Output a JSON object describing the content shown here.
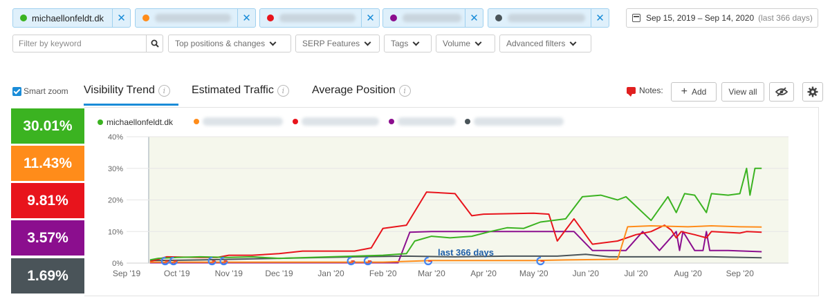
{
  "competitors": [
    {
      "domain": "michaellonfeldt.dk",
      "color": "#3bb321"
    },
    {
      "domain": "",
      "color": "#ff8c1a"
    },
    {
      "domain": "",
      "color": "#e8141c"
    },
    {
      "domain": "",
      "color": "#8b0e8e"
    },
    {
      "domain": "",
      "color": "#4a5459"
    }
  ],
  "date_range": {
    "label": "Sep 15, 2019 – Sep 14, 2020",
    "suffix": "(last 366 days)"
  },
  "filters": {
    "keyword_placeholder": "Filter by keyword",
    "dropdowns": [
      "Top positions & changes",
      "SERP Features",
      "Tags",
      "Volume",
      "Advanced filters"
    ]
  },
  "smart_zoom": {
    "label": "Smart zoom",
    "checked": true
  },
  "tabs": [
    {
      "label": "Visibility Trend",
      "active": true
    },
    {
      "label": "Estimated Traffic",
      "active": false
    },
    {
      "label": "Average Position",
      "active": false
    }
  ],
  "notes": {
    "label": "Notes:",
    "add_label": "Add",
    "view_all_label": "View all"
  },
  "scores": [
    {
      "value": "30.01%",
      "color": "#3bb321"
    },
    {
      "value": "11.43%",
      "color": "#ff8c1a"
    },
    {
      "value": "9.81%",
      "color": "#e8141c"
    },
    {
      "value": "3.57%",
      "color": "#8b0e8e"
    },
    {
      "value": "1.69%",
      "color": "#4a5459"
    }
  ],
  "chart_data": {
    "type": "line",
    "ylim": [
      0,
      40
    ],
    "y_ticks": [
      "0%",
      "10%",
      "20%",
      "30%",
      "40%"
    ],
    "x_ticks": [
      "Sep '19",
      "Oct '19",
      "Nov '19",
      "Dec '19",
      "Jan '20",
      "Feb '20",
      "Mar '20",
      "Apr '20",
      "May '20",
      "Jun '20",
      "Jul '20",
      "Aug '20",
      "Sep '20"
    ],
    "x_start": "2019-09-01",
    "x_end": "2020-09-30",
    "annotation": "last 366 days",
    "google_update_markers": [
      "2019-09-24",
      "2019-09-29",
      "2019-10-22",
      "2019-10-29",
      "2020-01-13",
      "2020-01-23",
      "2020-02-28",
      "2020-05-05"
    ],
    "series": [
      {
        "name": "michaellonfeldt.dk",
        "color": "#3bb321",
        "points": [
          [
            "2019-09-15",
            1
          ],
          [
            "2019-09-20",
            1.5
          ],
          [
            "2019-10-01",
            1.8
          ],
          [
            "2019-10-15",
            2
          ],
          [
            "2019-11-01",
            1.8
          ],
          [
            "2019-11-15",
            2
          ],
          [
            "2019-12-01",
            1.5
          ],
          [
            "2019-12-20",
            1.8
          ],
          [
            "2020-01-01",
            2
          ],
          [
            "2020-01-15",
            2.2
          ],
          [
            "2020-02-01",
            2.5
          ],
          [
            "2020-02-15",
            3
          ],
          [
            "2020-02-20",
            7
          ],
          [
            "2020-03-01",
            8.5
          ],
          [
            "2020-03-12",
            8
          ],
          [
            "2020-03-25",
            8.5
          ],
          [
            "2020-04-05",
            10
          ],
          [
            "2020-04-15",
            11.2
          ],
          [
            "2020-04-25",
            11
          ],
          [
            "2020-05-05",
            13
          ],
          [
            "2020-05-20",
            14
          ],
          [
            "2020-05-30",
            21
          ],
          [
            "2020-06-10",
            21.5
          ],
          [
            "2020-06-20",
            20
          ],
          [
            "2020-06-25",
            21
          ],
          [
            "2020-07-10",
            13.5
          ],
          [
            "2020-07-20",
            21
          ],
          [
            "2020-07-25",
            16
          ],
          [
            "2020-07-30",
            22
          ],
          [
            "2020-08-05",
            21.5
          ],
          [
            "2020-08-12",
            16
          ],
          [
            "2020-08-15",
            22
          ],
          [
            "2020-08-25",
            21.5
          ],
          [
            "2020-09-01",
            22
          ],
          [
            "2020-09-05",
            30
          ],
          [
            "2020-09-07",
            21.5
          ],
          [
            "2020-09-10",
            30
          ],
          [
            "2020-09-14",
            30
          ]
        ]
      },
      {
        "name": "",
        "color": "#ff8c1a",
        "points": [
          [
            "2019-09-15",
            0.3
          ],
          [
            "2020-02-01",
            0.3
          ],
          [
            "2020-03-01",
            0.8
          ],
          [
            "2020-04-01",
            0.8
          ],
          [
            "2020-05-01",
            0.8
          ],
          [
            "2020-05-20",
            1
          ],
          [
            "2020-06-20",
            1.2
          ],
          [
            "2020-06-26",
            11.5
          ],
          [
            "2020-07-10",
            11.8
          ],
          [
            "2020-08-01",
            11.5
          ],
          [
            "2020-08-15",
            11.8
          ],
          [
            "2020-09-01",
            11.5
          ],
          [
            "2020-09-14",
            11.4
          ]
        ]
      },
      {
        "name": "",
        "color": "#e8141c",
        "points": [
          [
            "2019-09-15",
            0.5
          ],
          [
            "2019-09-25",
            2
          ],
          [
            "2019-10-15",
            1.8
          ],
          [
            "2019-10-25",
            1.8
          ],
          [
            "2019-11-01",
            2.5
          ],
          [
            "2019-11-15",
            2.5
          ],
          [
            "2019-12-01",
            3
          ],
          [
            "2019-12-15",
            3.8
          ],
          [
            "2020-01-15",
            3.8
          ],
          [
            "2020-01-25",
            4.8
          ],
          [
            "2020-02-01",
            11
          ],
          [
            "2020-02-15",
            12
          ],
          [
            "2020-02-27",
            22.5
          ],
          [
            "2020-03-15",
            22
          ],
          [
            "2020-03-25",
            15
          ],
          [
            "2020-04-01",
            15.5
          ],
          [
            "2020-05-01",
            15.8
          ],
          [
            "2020-05-10",
            15.5
          ],
          [
            "2020-05-15",
            7
          ],
          [
            "2020-05-25",
            14
          ],
          [
            "2020-06-05",
            6
          ],
          [
            "2020-06-20",
            7
          ],
          [
            "2020-07-01",
            9
          ],
          [
            "2020-07-10",
            10
          ],
          [
            "2020-07-18",
            12
          ],
          [
            "2020-07-22",
            10.5
          ],
          [
            "2020-07-25",
            8
          ],
          [
            "2020-07-28",
            10
          ],
          [
            "2020-08-05",
            9
          ],
          [
            "2020-08-12",
            8
          ],
          [
            "2020-08-15",
            10
          ],
          [
            "2020-09-01",
            9.5
          ],
          [
            "2020-09-05",
            10
          ],
          [
            "2020-09-14",
            9.8
          ]
        ]
      },
      {
        "name": "",
        "color": "#8b0e8e",
        "points": [
          [
            "2019-09-15",
            0.1
          ],
          [
            "2020-02-10",
            0.1
          ],
          [
            "2020-02-17",
            9.8
          ],
          [
            "2020-03-01",
            10
          ],
          [
            "2020-05-25",
            10
          ],
          [
            "2020-06-05",
            4
          ],
          [
            "2020-06-25",
            4
          ],
          [
            "2020-07-05",
            10
          ],
          [
            "2020-07-15",
            4
          ],
          [
            "2020-07-25",
            10
          ],
          [
            "2020-07-27",
            4
          ],
          [
            "2020-07-29",
            10
          ],
          [
            "2020-08-05",
            4
          ],
          [
            "2020-08-10",
            4
          ],
          [
            "2020-08-12",
            10
          ],
          [
            "2020-08-14",
            4
          ],
          [
            "2020-08-25",
            4
          ],
          [
            "2020-09-14",
            3.6
          ]
        ]
      },
      {
        "name": "",
        "color": "#4a5459",
        "points": [
          [
            "2019-09-15",
            0.8
          ],
          [
            "2019-10-15",
            1
          ],
          [
            "2019-12-01",
            1.5
          ],
          [
            "2020-01-15",
            2
          ],
          [
            "2020-02-15",
            2.2
          ],
          [
            "2020-03-15",
            2
          ],
          [
            "2020-04-15",
            2.2
          ],
          [
            "2020-05-15",
            2.2
          ],
          [
            "2020-06-01",
            2.8
          ],
          [
            "2020-06-15",
            2
          ],
          [
            "2020-07-15",
            2
          ],
          [
            "2020-08-15",
            2
          ],
          [
            "2020-09-14",
            1.7
          ]
        ]
      }
    ]
  }
}
